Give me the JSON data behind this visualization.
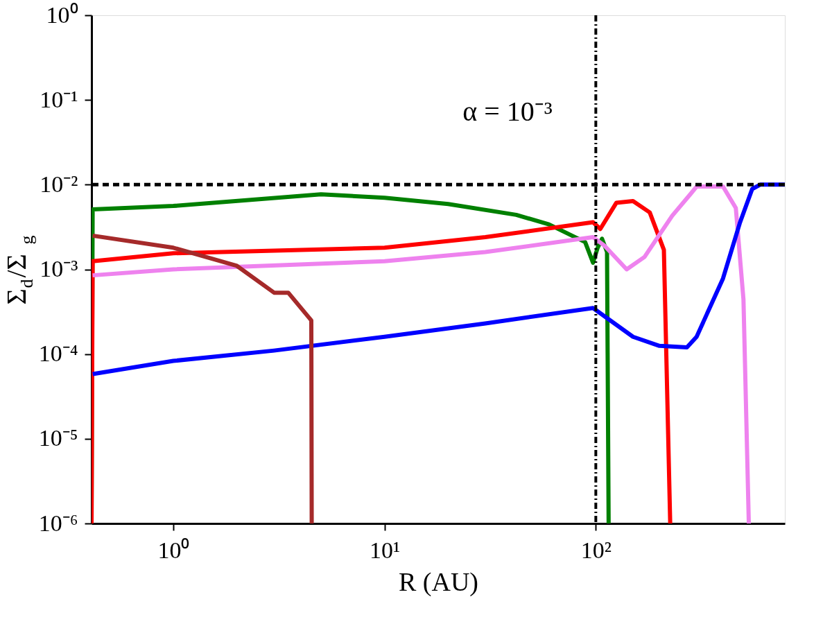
{
  "chart_data": {
    "type": "line",
    "xlabel": "R (AU)",
    "ylabel": "Σ$_{d}$/Σ$_{g}$",
    "log": "xy",
    "grid": false,
    "legend": false,
    "line_style": "solid",
    "marker": "none",
    "xlim": [
      0.41,
      785
    ],
    "ylim": [
      1e-06,
      1
    ],
    "xticks": [
      {
        "value": 1,
        "label": "10⁰"
      },
      {
        "value": 10,
        "label": "10¹"
      },
      {
        "value": 100,
        "label": "10²"
      }
    ],
    "yticks": [
      {
        "value": 1e-06,
        "label": "10⁻⁶"
      },
      {
        "value": 1e-05,
        "label": "10⁻⁵"
      },
      {
        "value": 0.0001,
        "label": "10⁻⁴"
      },
      {
        "value": 0.001,
        "label": "10⁻³"
      },
      {
        "value": 0.01,
        "label": "10⁻²"
      },
      {
        "value": 0.1,
        "label": "10⁻¹"
      },
      {
        "value": 1,
        "label": "10⁰"
      }
    ],
    "series": [
      {
        "color": "#008000",
        "x": [
          0.41,
          0.415,
          1,
          5,
          10,
          20,
          42,
          60,
          89,
          97,
          102,
          107,
          113,
          115
        ],
        "values": [
          1e-06,
          0.0051,
          0.0056,
          0.0077,
          0.007,
          0.0059,
          0.0044,
          0.0034,
          0.0021,
          0.0012,
          0.0018,
          0.0023,
          0.0016,
          1e-06
        ]
      },
      {
        "color": "#ff0000",
        "x": [
          0.41,
          0.415,
          1,
          10,
          30,
          97,
          105,
          125,
          150,
          180,
          210,
          225
        ],
        "values": [
          1e-06,
          0.00125,
          0.00155,
          0.0018,
          0.0024,
          0.0036,
          0.003,
          0.0061,
          0.0064,
          0.0047,
          0.0017,
          1e-06
        ]
      },
      {
        "color": "#ee82ee",
        "x": [
          0.415,
          1,
          10,
          30,
          97,
          110,
          140,
          170,
          230,
          280,
          300,
          400,
          460,
          500,
          530
        ],
        "values": [
          0.00085,
          0.001,
          0.00125,
          0.0016,
          0.0024,
          0.0019,
          0.001,
          0.0014,
          0.0043,
          0.0077,
          0.0095,
          0.0095,
          0.0053,
          0.00044,
          1e-06
        ]
      },
      {
        "color": "#0000ff",
        "x": [
          0.415,
          1,
          3,
          10,
          30,
          97,
          150,
          200,
          270,
          300,
          400,
          480,
          550,
          600,
          785
        ],
        "values": [
          5.8e-05,
          8.3e-05,
          0.00011,
          0.00016,
          0.00023,
          0.00035,
          0.00016,
          0.000125,
          0.00012,
          0.00016,
          0.00078,
          0.0035,
          0.0089,
          0.01,
          0.01
        ]
      },
      {
        "color": "#a52a2a",
        "x": [
          0.415,
          1,
          2,
          3,
          3.5,
          4.5,
          4.52
        ],
        "values": [
          0.0025,
          0.0018,
          0.0011,
          0.00053,
          0.00053,
          0.00025,
          1e-06
        ]
      }
    ],
    "ref_lines": [
      {
        "axis": "y",
        "value": 0.01,
        "color": "#000000",
        "line_style": "dashed"
      },
      {
        "axis": "x",
        "value": 100,
        "color": "#000000",
        "line_style": "dashdot"
      }
    ],
    "annotations": [
      "α = 10⁻³"
    ]
  }
}
